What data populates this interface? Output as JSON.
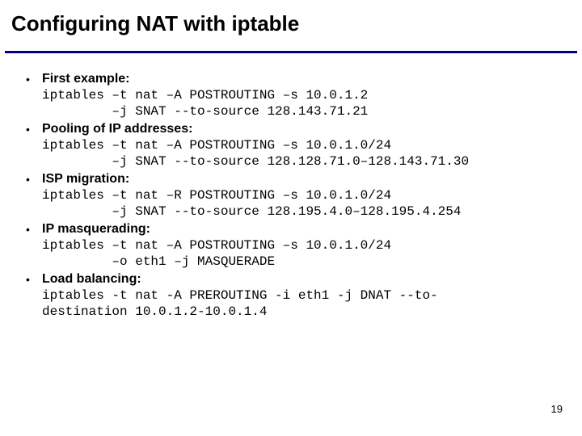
{
  "title": "Configuring NAT with iptable",
  "divider_color": "#000080",
  "items": [
    {
      "label": "First example:",
      "cmd": "iptables –t nat –A POSTROUTING –s 10.0.1.2\n         –j SNAT --to-source 128.143.71.21"
    },
    {
      "label": "Pooling of IP addresses:",
      "cmd": "iptables –t nat –A POSTROUTING –s 10.0.1.0/24\n         –j SNAT --to-source 128.128.71.0–128.143.71.30"
    },
    {
      "label": "ISP migration:",
      "cmd": "iptables –t nat –R POSTROUTING –s 10.0.1.0/24\n         –j SNAT --to-source 128.195.4.0–128.195.4.254"
    },
    {
      "label": "IP masquerading:",
      "cmd": "iptables –t nat –A POSTROUTING –s 10.0.1.0/24\n         –o eth1 –j MASQUERADE"
    },
    {
      "label": "Load balancing:",
      "cmd": "iptables -t nat -A PREROUTING -i eth1 -j DNAT --to-\ndestination 10.0.1.2-10.0.1.4"
    }
  ],
  "page_number": "19"
}
